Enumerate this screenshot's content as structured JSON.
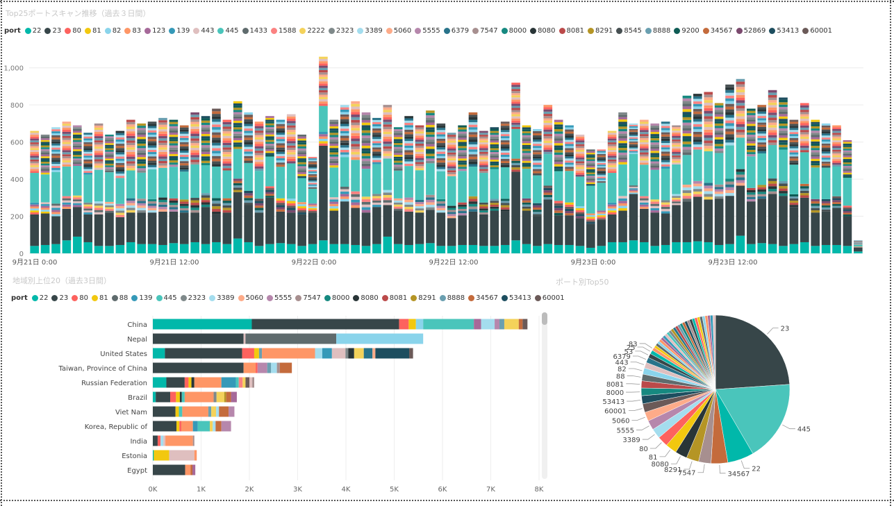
{
  "colors": {
    "22": "#01b8aa",
    "23": "#374649",
    "80": "#fd625e",
    "81": "#f2c80f",
    "82": "#8ad4eb",
    "83": "#fe9666",
    "88": "#5f6b6d",
    "123": "#a66999",
    "139": "#3599b8",
    "443": "#dfbfbf",
    "445": "#4ac5bb",
    "1433": "#5f6b6d",
    "1588": "#fb8281",
    "2222": "#f4d25a",
    "2323": "#7f898a",
    "3389": "#a4ddee",
    "5060": "#fdab89",
    "5555": "#b687ac",
    "6379": "#28738a",
    "7547": "#a78f8f",
    "8000": "#168980",
    "8080": "#293537",
    "8081": "#bb4a4a",
    "8291": "#b59525",
    "8545": "#475052",
    "8888": "#6a9fb0",
    "9200": "#0f5c55",
    "34567": "#c46b3c",
    "52869": "#7b4a6e",
    "53413": "#1d4e5f",
    "60001": "#6b5a58",
    "other": "#8e9aa0"
  },
  "chart_data": [
    {
      "type": "bar",
      "stacked": true,
      "title": "Top25ポートスキャン推移（過去３日間）",
      "legend_title": "port",
      "legend": [
        "22",
        "23",
        "80",
        "81",
        "82",
        "83",
        "123",
        "139",
        "443",
        "445",
        "1433",
        "1588",
        "2222",
        "2323",
        "3389",
        "5060",
        "5555",
        "6379",
        "7547",
        "8000",
        "8080",
        "8081",
        "8291",
        "8545",
        "8888",
        "9200",
        "34567",
        "52869",
        "53413",
        "60001"
      ],
      "x_ticks": [
        "9月21日 0:00",
        "9月21日 12:00",
        "9月22日 0:00",
        "9月22日 12:00",
        "9月23日 0:00",
        "9月23日 12:00"
      ],
      "y_ticks": [
        "0",
        "200",
        "400",
        "600",
        "800",
        "1,000"
      ],
      "ylim": [
        0,
        1100
      ],
      "totals": [
        660,
        640,
        680,
        710,
        690,
        650,
        700,
        640,
        660,
        720,
        700,
        710,
        730,
        720,
        690,
        760,
        740,
        780,
        720,
        820,
        760,
        710,
        740,
        720,
        750,
        640,
        520,
        1060,
        720,
        800,
        820,
        760,
        730,
        800,
        680,
        740,
        690,
        770,
        700,
        650,
        690,
        760,
        660,
        680,
        710,
        920,
        690,
        670,
        800,
        720,
        690,
        640,
        560,
        560,
        660,
        760,
        700,
        720,
        700,
        710,
        690,
        850,
        860,
        870,
        810,
        910,
        940,
        780,
        800,
        880,
        840,
        720,
        810,
        720,
        700,
        690,
        610,
        70
      ],
      "base_22": [
        40,
        45,
        50,
        70,
        90,
        60,
        40,
        40,
        45,
        60,
        50,
        50,
        45,
        55,
        50,
        60,
        50,
        60,
        50,
        80,
        60,
        40,
        50,
        55,
        50,
        40,
        50,
        70,
        50,
        50,
        45,
        40,
        50,
        90,
        50,
        45,
        50,
        55,
        40,
        40,
        45,
        45,
        40,
        40,
        45,
        70,
        50,
        40,
        50,
        45,
        45,
        40,
        30,
        40,
        60,
        60,
        70,
        60,
        40,
        45,
        60,
        60,
        65,
        60,
        45,
        50,
        95,
        50,
        55,
        50,
        40,
        50,
        60,
        40,
        45,
        45,
        40,
        10
      ],
      "base_23": [
        170,
        170,
        150,
        170,
        160,
        150,
        170,
        180,
        150,
        160,
        170,
        170,
        180,
        170,
        170,
        160,
        200,
        150,
        170,
        250,
        200,
        180,
        250,
        170,
        170,
        170,
        170,
        510,
        180,
        230,
        200,
        180,
        200,
        170,
        180,
        180,
        170,
        180,
        180,
        150,
        160,
        180,
        170,
        190,
        180,
        370,
        180,
        160,
        240,
        160,
        160,
        150,
        130,
        140,
        150,
        170,
        250,
        180,
        180,
        170,
        200,
        220,
        240,
        230,
        250,
        260,
        270,
        230,
        240,
        270,
        270,
        200,
        240,
        180,
        180,
        200,
        160,
        20
      ],
      "base_445": [
        160,
        150,
        170,
        160,
        160,
        150,
        170,
        160,
        140,
        150,
        140,
        160,
        160,
        170,
        150,
        180,
        150,
        170,
        150,
        160,
        150,
        150,
        160,
        170,
        190,
        130,
        80,
        140,
        160,
        160,
        170,
        150,
        160,
        170,
        150,
        170,
        160,
        170,
        150,
        160,
        170,
        160,
        160,
        160,
        170,
        160,
        160,
        150,
        170,
        160,
        170,
        160,
        150,
        150,
        160,
        170,
        170,
        170,
        160,
        170,
        160,
        160,
        170,
        170,
        170,
        180,
        170,
        170,
        170,
        180,
        170,
        160,
        170,
        170,
        170,
        160,
        150,
        10
      ]
    },
    {
      "type": "bar",
      "orientation": "horizontal",
      "stacked": true,
      "title": "地域別上位20（過去3日間）",
      "legend_title": "port",
      "legend": [
        "22",
        "23",
        "80",
        "81",
        "88",
        "139",
        "445",
        "2323",
        "3389",
        "5060",
        "5555",
        "7547",
        "8000",
        "8080",
        "8081",
        "8291",
        "8888",
        "34567",
        "53413",
        "60001"
      ],
      "categories": [
        "China",
        "Nepal",
        "United States",
        "Taiwan, Province of China",
        "Russian Federation",
        "Brazil",
        "Viet Nam",
        "Korea, Republic of",
        "India",
        "Estonia",
        "Egypt"
      ],
      "x_ticks": [
        "0K",
        "1K",
        "2K",
        "3K",
        "4K",
        "5K",
        "6K",
        "7K",
        "8K"
      ],
      "xlim": [
        0,
        8000
      ],
      "bars": [
        [
          [
            "22",
            2050
          ],
          [
            "23",
            3050
          ],
          [
            "80",
            200
          ],
          [
            "81",
            150
          ],
          [
            "82",
            150
          ],
          [
            "445",
            1050
          ],
          [
            "123",
            150
          ],
          [
            "3389",
            280
          ],
          [
            "5555",
            100
          ],
          [
            "8888",
            100
          ],
          [
            "2222",
            300
          ],
          [
            "34567",
            80
          ],
          [
            "60001",
            100
          ]
        ],
        [
          [
            "23",
            1880
          ],
          [
            "443",
            40
          ],
          [
            "1433",
            1880
          ],
          [
            "82",
            1800
          ]
        ],
        [
          [
            "22",
            250
          ],
          [
            "23",
            1600
          ],
          [
            "80",
            250
          ],
          [
            "81",
            100
          ],
          [
            "8888",
            60
          ],
          [
            "83",
            1100
          ],
          [
            "3389",
            150
          ],
          [
            "139",
            200
          ],
          [
            "443",
            280
          ],
          [
            "2323",
            60
          ],
          [
            "8080",
            120
          ],
          [
            "2222",
            200
          ],
          [
            "6379",
            180
          ],
          [
            "5060",
            60
          ],
          [
            "53413",
            700
          ],
          [
            "60001",
            80
          ]
        ],
        [
          [
            "23",
            1880
          ],
          [
            "83",
            250
          ],
          [
            "80",
            40
          ],
          [
            "5555",
            200
          ],
          [
            "8888",
            80
          ],
          [
            "3389",
            120
          ],
          [
            "7547",
            60
          ],
          [
            "34567",
            250
          ]
        ],
        [
          [
            "22",
            280
          ],
          [
            "23",
            380
          ],
          [
            "80",
            80
          ],
          [
            "81",
            60
          ],
          [
            "8080",
            60
          ],
          [
            "83",
            560
          ],
          [
            "139",
            300
          ],
          [
            "445",
            60
          ],
          [
            "1588",
            80
          ],
          [
            "2222",
            60
          ],
          [
            "60001",
            80
          ],
          [
            "443",
            60
          ],
          [
            "7547",
            40
          ]
        ],
        [
          [
            "22",
            60
          ],
          [
            "23",
            300
          ],
          [
            "80",
            120
          ],
          [
            "81",
            80
          ],
          [
            "8080",
            40
          ],
          [
            "445",
            60
          ],
          [
            "83",
            600
          ],
          [
            "2323",
            60
          ],
          [
            "2222",
            160
          ],
          [
            "8291",
            40
          ],
          [
            "34567",
            100
          ],
          [
            "123",
            120
          ]
        ],
        [
          [
            "23",
            470
          ],
          [
            "81",
            70
          ],
          [
            "445",
            70
          ],
          [
            "83",
            540
          ],
          [
            "8888",
            60
          ],
          [
            "2222",
            100
          ],
          [
            "3389",
            60
          ],
          [
            "34567",
            200
          ],
          [
            "5555",
            120
          ]
        ],
        [
          [
            "23",
            490
          ],
          [
            "81",
            60
          ],
          [
            "80",
            40
          ],
          [
            "83",
            240
          ],
          [
            "139",
            100
          ],
          [
            "445",
            250
          ],
          [
            "2222",
            60
          ],
          [
            "3389",
            60
          ],
          [
            "34567",
            120
          ],
          [
            "5555",
            200
          ]
        ],
        [
          [
            "23",
            100
          ],
          [
            "80",
            60
          ],
          [
            "3389",
            60
          ],
          [
            "443",
            40
          ],
          [
            "83",
            570
          ],
          [
            "7547",
            30
          ]
        ],
        [
          [
            "22",
            20
          ],
          [
            "81",
            320
          ],
          [
            "443",
            520
          ],
          [
            "83",
            50
          ]
        ],
        [
          [
            "23",
            670
          ],
          [
            "83",
            110
          ],
          [
            "34567",
            40
          ],
          [
            "123",
            60
          ]
        ]
      ]
    },
    {
      "type": "pie",
      "title": "ポート別Top50",
      "labels": [
        "23",
        "445",
        "22",
        "34567",
        "7547",
        "8291",
        "8080",
        "81",
        "80",
        "3389",
        "5555",
        "5060",
        "60001",
        "53413",
        "8000",
        "8081",
        "88",
        "82",
        "443",
        "6379",
        "53",
        "25",
        "83"
      ],
      "values": [
        23,
        17,
        5.5,
        3.5,
        2.6,
        2.6,
        2.5,
        2.4,
        2.2,
        2.1,
        2.0,
        1.9,
        1.8,
        1.7,
        1.6,
        1.5,
        1.4,
        1.3,
        1.2,
        1.1,
        0.9,
        0.8,
        0.7
      ],
      "small_slices": 27,
      "small_value": 0.55
    }
  ]
}
